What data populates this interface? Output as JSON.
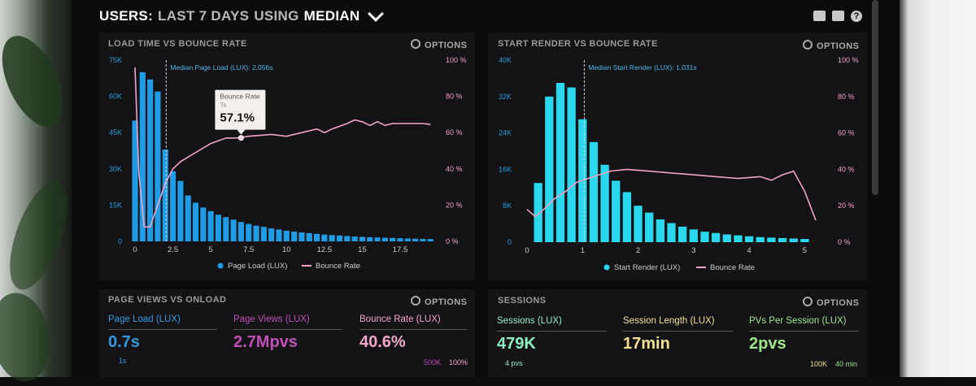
{
  "header": {
    "users_label": "USERS:",
    "period_label": "LAST 7 DAYS",
    "using_label": "USING",
    "stat_label": "MEDIAN"
  },
  "panels": {
    "load_chart": {
      "title": "LOAD TIME VS BOUNCE RATE",
      "options": "OPTIONS"
    },
    "render_chart": {
      "title": "START RENDER VS BOUNCE RATE",
      "options": "OPTIONS"
    },
    "page_views": {
      "title": "PAGE VIEWS VS ONLOAD",
      "options": "OPTIONS"
    },
    "sessions": {
      "title": "SESSIONS",
      "options": "OPTIONS"
    }
  },
  "stats": {
    "page_views": [
      {
        "label": "Page Load (LUX)",
        "value": "0.7s",
        "color": "#2f9ae0",
        "sub": "1s"
      },
      {
        "label": "Page Views (LUX)",
        "value": "2.7Mpvs",
        "color": "#c04fb8",
        "sub": ""
      },
      {
        "label": "Bounce Rate (LUX)",
        "value": "40.6%",
        "color": "#f3a6c9",
        "sub": ""
      }
    ],
    "page_views_axis": [
      "500K",
      "100%"
    ],
    "sessions": [
      {
        "label": "Sessions (LUX)",
        "value": "479K",
        "color": "#8ef0c2",
        "sub": "4 pvs"
      },
      {
        "label": "Session Length (LUX)",
        "value": "17min",
        "color": "#f0e08e",
        "sub": ""
      },
      {
        "label": "PVs Per Session (LUX)",
        "value": "2pvs",
        "color": "#9ee88a",
        "sub": ""
      }
    ],
    "sessions_axis": [
      "100K",
      "40 min"
    ]
  },
  "chart_data": [
    {
      "type": "bar",
      "title": "LOAD TIME VS BOUNCE RATE",
      "x": [
        0,
        0.5,
        1,
        1.5,
        2,
        2.5,
        3,
        3.5,
        4,
        4.5,
        5,
        5.5,
        6,
        6.5,
        7,
        7.5,
        8,
        8.5,
        9,
        9.5,
        10,
        10.5,
        11,
        11.5,
        12,
        12.5,
        13,
        13.5,
        14,
        14.5,
        15,
        15.5,
        16,
        16.5,
        17,
        17.5,
        18,
        18.5,
        19,
        19.5
      ],
      "x_ticks": [
        "0",
        "2.5",
        "5",
        "7.5",
        "10",
        "12.5",
        "15",
        "17.5"
      ],
      "y_ticks": [
        "0",
        "15K",
        "30K",
        "45K",
        "60K",
        "75K"
      ],
      "y2_ticks": [
        "0 %",
        "20 %",
        "40 %",
        "60 %",
        "80 %",
        "100 %"
      ],
      "ylim": [
        0,
        75000
      ],
      "y2lim": [
        0,
        100
      ],
      "series": [
        {
          "name": "Page Load (LUX)",
          "kind": "bar",
          "color": "#1e9de6",
          "values": [
            50000,
            70000,
            67000,
            62000,
            38000,
            29000,
            25000,
            19000,
            16000,
            14000,
            12500,
            11000,
            10000,
            9000,
            8000,
            7200,
            6500,
            6000,
            5400,
            4900,
            4400,
            4000,
            3700,
            3400,
            3100,
            2800,
            2600,
            2400,
            2200,
            2000,
            1850,
            1700,
            1600,
            1500,
            1400,
            1300,
            1200,
            1100,
            1000,
            950
          ]
        },
        {
          "name": "Bounce Rate",
          "kind": "line",
          "color": "#f2a2c6",
          "points": [
            [
              0,
              96
            ],
            [
              0.25,
              38
            ],
            [
              0.6,
              8
            ],
            [
              1,
              8
            ],
            [
              1.5,
              20
            ],
            [
              2,
              32
            ],
            [
              2.5,
              40
            ],
            [
              3,
              44
            ],
            [
              4,
              49
            ],
            [
              5,
              54
            ],
            [
              6,
              57
            ],
            [
              6.8,
              57.1
            ],
            [
              7.5,
              58
            ],
            [
              9,
              59
            ],
            [
              10,
              58
            ],
            [
              11,
              60
            ],
            [
              12,
              62
            ],
            [
              12.5,
              60
            ],
            [
              13,
              62
            ],
            [
              14,
              65
            ],
            [
              14.5,
              67
            ],
            [
              15,
              66
            ],
            [
              15.5,
              64
            ],
            [
              16,
              66
            ],
            [
              16.5,
              64
            ],
            [
              17,
              65
            ],
            [
              18,
              65
            ],
            [
              19,
              65
            ],
            [
              19.5,
              64.5
            ]
          ]
        }
      ],
      "annotations": {
        "median_label": "Median Page Load (LUX): 2.056s",
        "median_x": 2.056,
        "tooltip_title": "Bounce Rate",
        "tooltip_x_label": "7s",
        "tooltip_value": "57.1%",
        "tooltip_x": 7,
        "tooltip_y": 57.1
      },
      "legend": "bottom"
    },
    {
      "type": "bar",
      "title": "START RENDER VS BOUNCE RATE",
      "x": [
        0.2,
        0.4,
        0.6,
        0.8,
        1.0,
        1.2,
        1.4,
        1.6,
        1.8,
        2.0,
        2.2,
        2.4,
        2.6,
        2.8,
        3.0,
        3.2,
        3.4,
        3.6,
        3.8,
        4.0,
        4.2,
        4.4,
        4.6,
        4.8,
        5.0
      ],
      "x_ticks": [
        "0",
        "1",
        "2",
        "3",
        "4",
        "5"
      ],
      "y_ticks": [
        "0",
        "8K",
        "16K",
        "24K",
        "32K",
        "40K"
      ],
      "y2_ticks": [
        "0 %",
        "20 %",
        "40 %",
        "60 %",
        "80 %",
        "100 %"
      ],
      "ylim": [
        0,
        40000
      ],
      "y2lim": [
        0,
        100
      ],
      "series": [
        {
          "name": "Start Render (LUX)",
          "kind": "bar",
          "color": "#2ad8ee",
          "values": [
            13000,
            32000,
            35000,
            34000,
            27000,
            22000,
            17000,
            13500,
            11000,
            8000,
            6500,
            5000,
            4200,
            3400,
            2800,
            2300,
            2000,
            1700,
            1500,
            1300,
            1100,
            1000,
            900,
            800,
            700
          ]
        },
        {
          "name": "Bounce Rate",
          "kind": "line",
          "color": "#f2a2c6",
          "points": [
            [
              0,
              18
            ],
            [
              0.15,
              14
            ],
            [
              0.3,
              18
            ],
            [
              0.5,
              24
            ],
            [
              0.7,
              28
            ],
            [
              0.9,
              33
            ],
            [
              1.1,
              35
            ],
            [
              1.3,
              37
            ],
            [
              1.5,
              39
            ],
            [
              1.8,
              40
            ],
            [
              2.2,
              39
            ],
            [
              2.6,
              38
            ],
            [
              3,
              37
            ],
            [
              3.4,
              36
            ],
            [
              3.8,
              35
            ],
            [
              4.2,
              36
            ],
            [
              4.4,
              34
            ],
            [
              4.6,
              37
            ],
            [
              4.8,
              39
            ],
            [
              5,
              28
            ],
            [
              5.2,
              12
            ]
          ]
        }
      ],
      "annotations": {
        "median_label": "Median Start Render (LUX): 1.031s",
        "median_x": 1.031
      },
      "legend": "bottom"
    }
  ]
}
